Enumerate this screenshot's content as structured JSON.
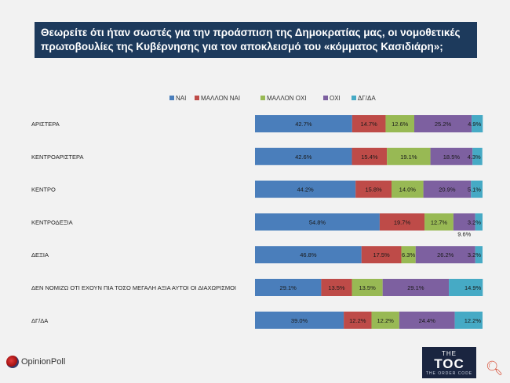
{
  "title": {
    "line1": "Θεωρείτε ότι ήταν σωστές για την προάσπιση της Δημοκρατίας μας,  οι νομοθετικές",
    "line2": "πρωτοβουλίες της Κυβέρνησης για τον αποκλεισμό του «κόμματος Κασιδιάρη»;"
  },
  "logo": {
    "brand": "OpinionPoll"
  },
  "toc_logo": {
    "the": "THE",
    "main": "TOC",
    "sub": "THE ORDER CODE"
  },
  "zoom_icon": "zoom-magnifier-icon",
  "chart_data": {
    "type": "bar",
    "orientation": "horizontal",
    "stacked": true,
    "xlim": [
      0,
      100
    ],
    "legend_position": "top-center",
    "categories": [
      "ΑΡΙΣΤΕΡΑ",
      "ΚΕΝΤΡΟΑΡΙΣΤΕΡΑ",
      "ΚΕΝΤΡΟ",
      "ΚΕΝΤΡΟΔΕΞΙΑ",
      "ΔΕΞΙΑ",
      "ΔΕΝ ΝΟΜΙΖΩ ΟΤΙ ΕΧΟΥΝ ΠΙΑ ΤΟΣΟ ΜΕΓΑΛΗ ΑΞΙΑ ΑΥΤΟΙ ΟΙ ΔΙΑΧΩΡΙΣΜΟΙ",
      "ΔΓ/ΔΑ"
    ],
    "series": [
      {
        "name": "ΝΑΙ",
        "color": "#4a7ebb",
        "values": [
          42.7,
          42.6,
          44.2,
          54.8,
          46.8,
          29.1,
          39.0
        ]
      },
      {
        "name": "ΜΑΛΛΟΝ ΝΑΙ",
        "color": "#be4b48",
        "values": [
          14.7,
          15.4,
          15.8,
          19.7,
          17.5,
          13.5,
          12.2
        ]
      },
      {
        "name": "ΜΑΛΛΟΝ ΟΧΙ",
        "color": "#98b954",
        "values": [
          12.6,
          19.1,
          14.0,
          12.7,
          6.3,
          13.5,
          12.2
        ]
      },
      {
        "name": "ΟΧΙ",
        "color": "#7d60a0",
        "values": [
          25.2,
          18.5,
          20.9,
          9.6,
          26.2,
          29.1,
          24.4
        ]
      },
      {
        "name": "ΔΓ/ΔΑ",
        "color": "#46aac5",
        "values": [
          4.9,
          4.3,
          5.1,
          3.2,
          3.2,
          14.9,
          12.2
        ]
      }
    ],
    "value_labels": [
      [
        "42.7%",
        "14.7%",
        "12.6%",
        "25.2%",
        "4.9%"
      ],
      [
        "42.6%",
        "15.4%",
        "19.1%",
        "18.5%",
        "4.3%"
      ],
      [
        "44.2%",
        "15.8%",
        "14.0%",
        "20.9%",
        "5.1%"
      ],
      [
        "54.8%",
        "19.7%",
        "12.7%",
        "9.6%",
        "3.2%"
      ],
      [
        "46.8%",
        "17.5%",
        "6.3%",
        "26.2%",
        "3.2%"
      ],
      [
        "29.1%",
        "13.5%",
        "13.5%",
        "29.1%",
        "14.9%"
      ],
      [
        "39.0%",
        "12.2%",
        "12.2%",
        "24.4%",
        "12.2%"
      ]
    ]
  }
}
